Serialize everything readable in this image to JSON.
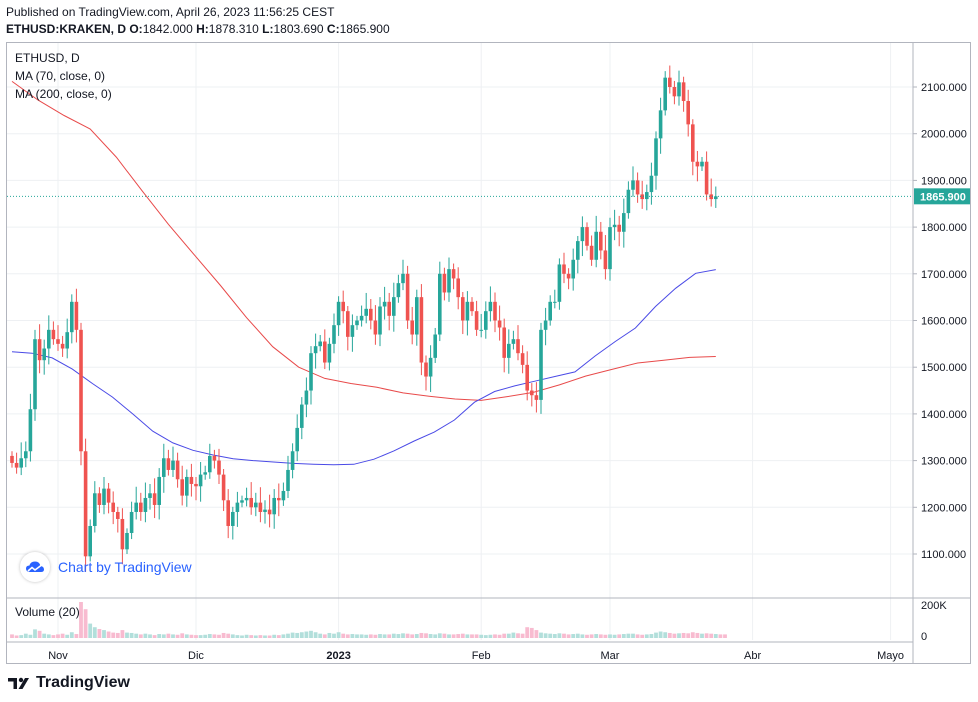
{
  "header": {
    "published": "Published on TradingView.com, April 26, 2023 11:56:25 CEST",
    "symbol": "ETHUSD:KRAKEN, D",
    "ohlc": {
      "o_label": "O:",
      "o": "1842.000",
      "h_label": "H:",
      "h": "1878.310",
      "l_label": "L:",
      "l": "1803.690",
      "c_label": "C:",
      "c": "1865.900"
    }
  },
  "legend": {
    "symbol": "ETHUSD, D",
    "ma70": "MA (70, close, 0)",
    "ma200": "MA (200, close, 0)",
    "volume": "Volume (20)"
  },
  "watermark": "Chart by TradingView",
  "footer": {
    "brand": "TradingView"
  },
  "colors": {
    "up": "#26a69a",
    "down": "#ef5350",
    "ma70": "#4a4ae6",
    "ma200": "#e84a4a",
    "last_price_bg": "#26a69a",
    "vol_up": "#b2dfdb",
    "vol_down": "#f8bbd0"
  },
  "chart_data": {
    "type": "candlestick",
    "symbol": "ETHUSD",
    "interval": "D",
    "ylim": [
      1050,
      2150
    ],
    "y_ticks": [
      "1100.000",
      "1200.000",
      "1300.000",
      "1400.000",
      "1500.000",
      "1600.000",
      "1700.000",
      "1800.000",
      "1900.000",
      "2000.000",
      "2100.000"
    ],
    "x_ticks": [
      {
        "label": "Nov",
        "i": 10
      },
      {
        "label": "Dic",
        "i": 40
      },
      {
        "label": "2023",
        "i": 71
      },
      {
        "label": "Feb",
        "i": 102
      },
      {
        "label": "Mar",
        "i": 130
      },
      {
        "label": "Abr",
        "i": 161
      },
      {
        "label": "Mayo",
        "i": 191
      }
    ],
    "last_price": "1865.900",
    "volume_ticks": [
      "200K",
      "0"
    ],
    "volume_max": 250000,
    "seed_close": 1310,
    "closes": [
      1295,
      1285,
      1305,
      1320,
      1410,
      1560,
      1515,
      1540,
      1580,
      1560,
      1550,
      1540,
      1575,
      1640,
      1580,
      1320,
      1095,
      1160,
      1230,
      1205,
      1240,
      1210,
      1190,
      1175,
      1110,
      1145,
      1190,
      1210,
      1190,
      1220,
      1230,
      1205,
      1265,
      1305,
      1280,
      1300,
      1260,
      1225,
      1265,
      1250,
      1245,
      1270,
      1275,
      1310,
      1300,
      1270,
      1215,
      1160,
      1190,
      1210,
      1215,
      1220,
      1200,
      1210,
      1190,
      1195,
      1185,
      1220,
      1215,
      1235,
      1280,
      1320,
      1370,
      1420,
      1450,
      1530,
      1545,
      1555,
      1510,
      1550,
      1590,
      1640,
      1620,
      1565,
      1590,
      1600,
      1610,
      1625,
      1600,
      1570,
      1630,
      1640,
      1610,
      1650,
      1680,
      1700,
      1600,
      1570,
      1650,
      1510,
      1480,
      1520,
      1570,
      1700,
      1660,
      1710,
      1690,
      1650,
      1600,
      1640,
      1620,
      1580,
      1580,
      1620,
      1640,
      1600,
      1585,
      1520,
      1550,
      1560,
      1530,
      1505,
      1450,
      1440,
      1430,
      1580,
      1600,
      1640,
      1640,
      1720,
      1700,
      1690,
      1730,
      1770,
      1800,
      1760,
      1730,
      1790,
      1750,
      1710,
      1800,
      1805,
      1790,
      1830,
      1880,
      1900,
      1870,
      1860,
      1875,
      1910,
      1990,
      2050,
      2120,
      2100,
      2080,
      2110,
      2070,
      2020,
      1940,
      1930,
      1940,
      1870,
      1860,
      1865.9
    ],
    "ma70": [
      1533,
      1530,
      1520,
      1496,
      1465,
      1436,
      1400,
      1363,
      1338,
      1322,
      1312,
      1304,
      1300,
      1297,
      1294,
      1292,
      1291,
      1292,
      1303,
      1321,
      1342,
      1361,
      1387,
      1425,
      1448,
      1460,
      1470,
      1480,
      1490,
      1524,
      1555,
      1584,
      1630,
      1669,
      1701,
      1709
    ],
    "ma200": [
      2112,
      2072,
      2039,
      2010,
      1950,
      1877,
      1806,
      1740,
      1675,
      1606,
      1544,
      1500,
      1476,
      1465,
      1457,
      1445,
      1438,
      1432,
      1429,
      1437,
      1446,
      1462,
      1481,
      1495,
      1509,
      1515,
      1521,
      1523
    ],
    "volumes": [
      0.1,
      0.07,
      0.08,
      0.12,
      0.09,
      0.24,
      0.2,
      0.12,
      0.1,
      0.08,
      0.1,
      0.12,
      0.09,
      0.16,
      0.11,
      1.0,
      0.8,
      0.4,
      0.3,
      0.25,
      0.22,
      0.18,
      0.15,
      0.14,
      0.22,
      0.15,
      0.14,
      0.12,
      0.1,
      0.12,
      0.1,
      0.08,
      0.11,
      0.1,
      0.12,
      0.1,
      0.09,
      0.13,
      0.1,
      0.09,
      0.08,
      0.08,
      0.09,
      0.11,
      0.1,
      0.09,
      0.14,
      0.12,
      0.1,
      0.08,
      0.07,
      0.09,
      0.08,
      0.07,
      0.08,
      0.07,
      0.07,
      0.09,
      0.08,
      0.1,
      0.12,
      0.15,
      0.14,
      0.16,
      0.18,
      0.2,
      0.16,
      0.12,
      0.1,
      0.14,
      0.12,
      0.16,
      0.12,
      0.1,
      0.11,
      0.1,
      0.1,
      0.09,
      0.1,
      0.09,
      0.11,
      0.1,
      0.1,
      0.12,
      0.11,
      0.13,
      0.12,
      0.1,
      0.11,
      0.14,
      0.13,
      0.11,
      0.1,
      0.13,
      0.12,
      0.1,
      0.1,
      0.11,
      0.12,
      0.1,
      0.1,
      0.1,
      0.09,
      0.08,
      0.09,
      0.1,
      0.09,
      0.12,
      0.12,
      0.15,
      0.13,
      0.12,
      0.3,
      0.28,
      0.22,
      0.15,
      0.13,
      0.12,
      0.11,
      0.13,
      0.12,
      0.1,
      0.11,
      0.12,
      0.1,
      0.09,
      0.1,
      0.11,
      0.1,
      0.09,
      0.1,
      0.09,
      0.1,
      0.11,
      0.12,
      0.12,
      0.1,
      0.09,
      0.1,
      0.11,
      0.15,
      0.18,
      0.16,
      0.14,
      0.12,
      0.13,
      0.14,
      0.13,
      0.16,
      0.14,
      0.12,
      0.13,
      0.12,
      0.11,
      0.1,
      0.1
    ]
  }
}
